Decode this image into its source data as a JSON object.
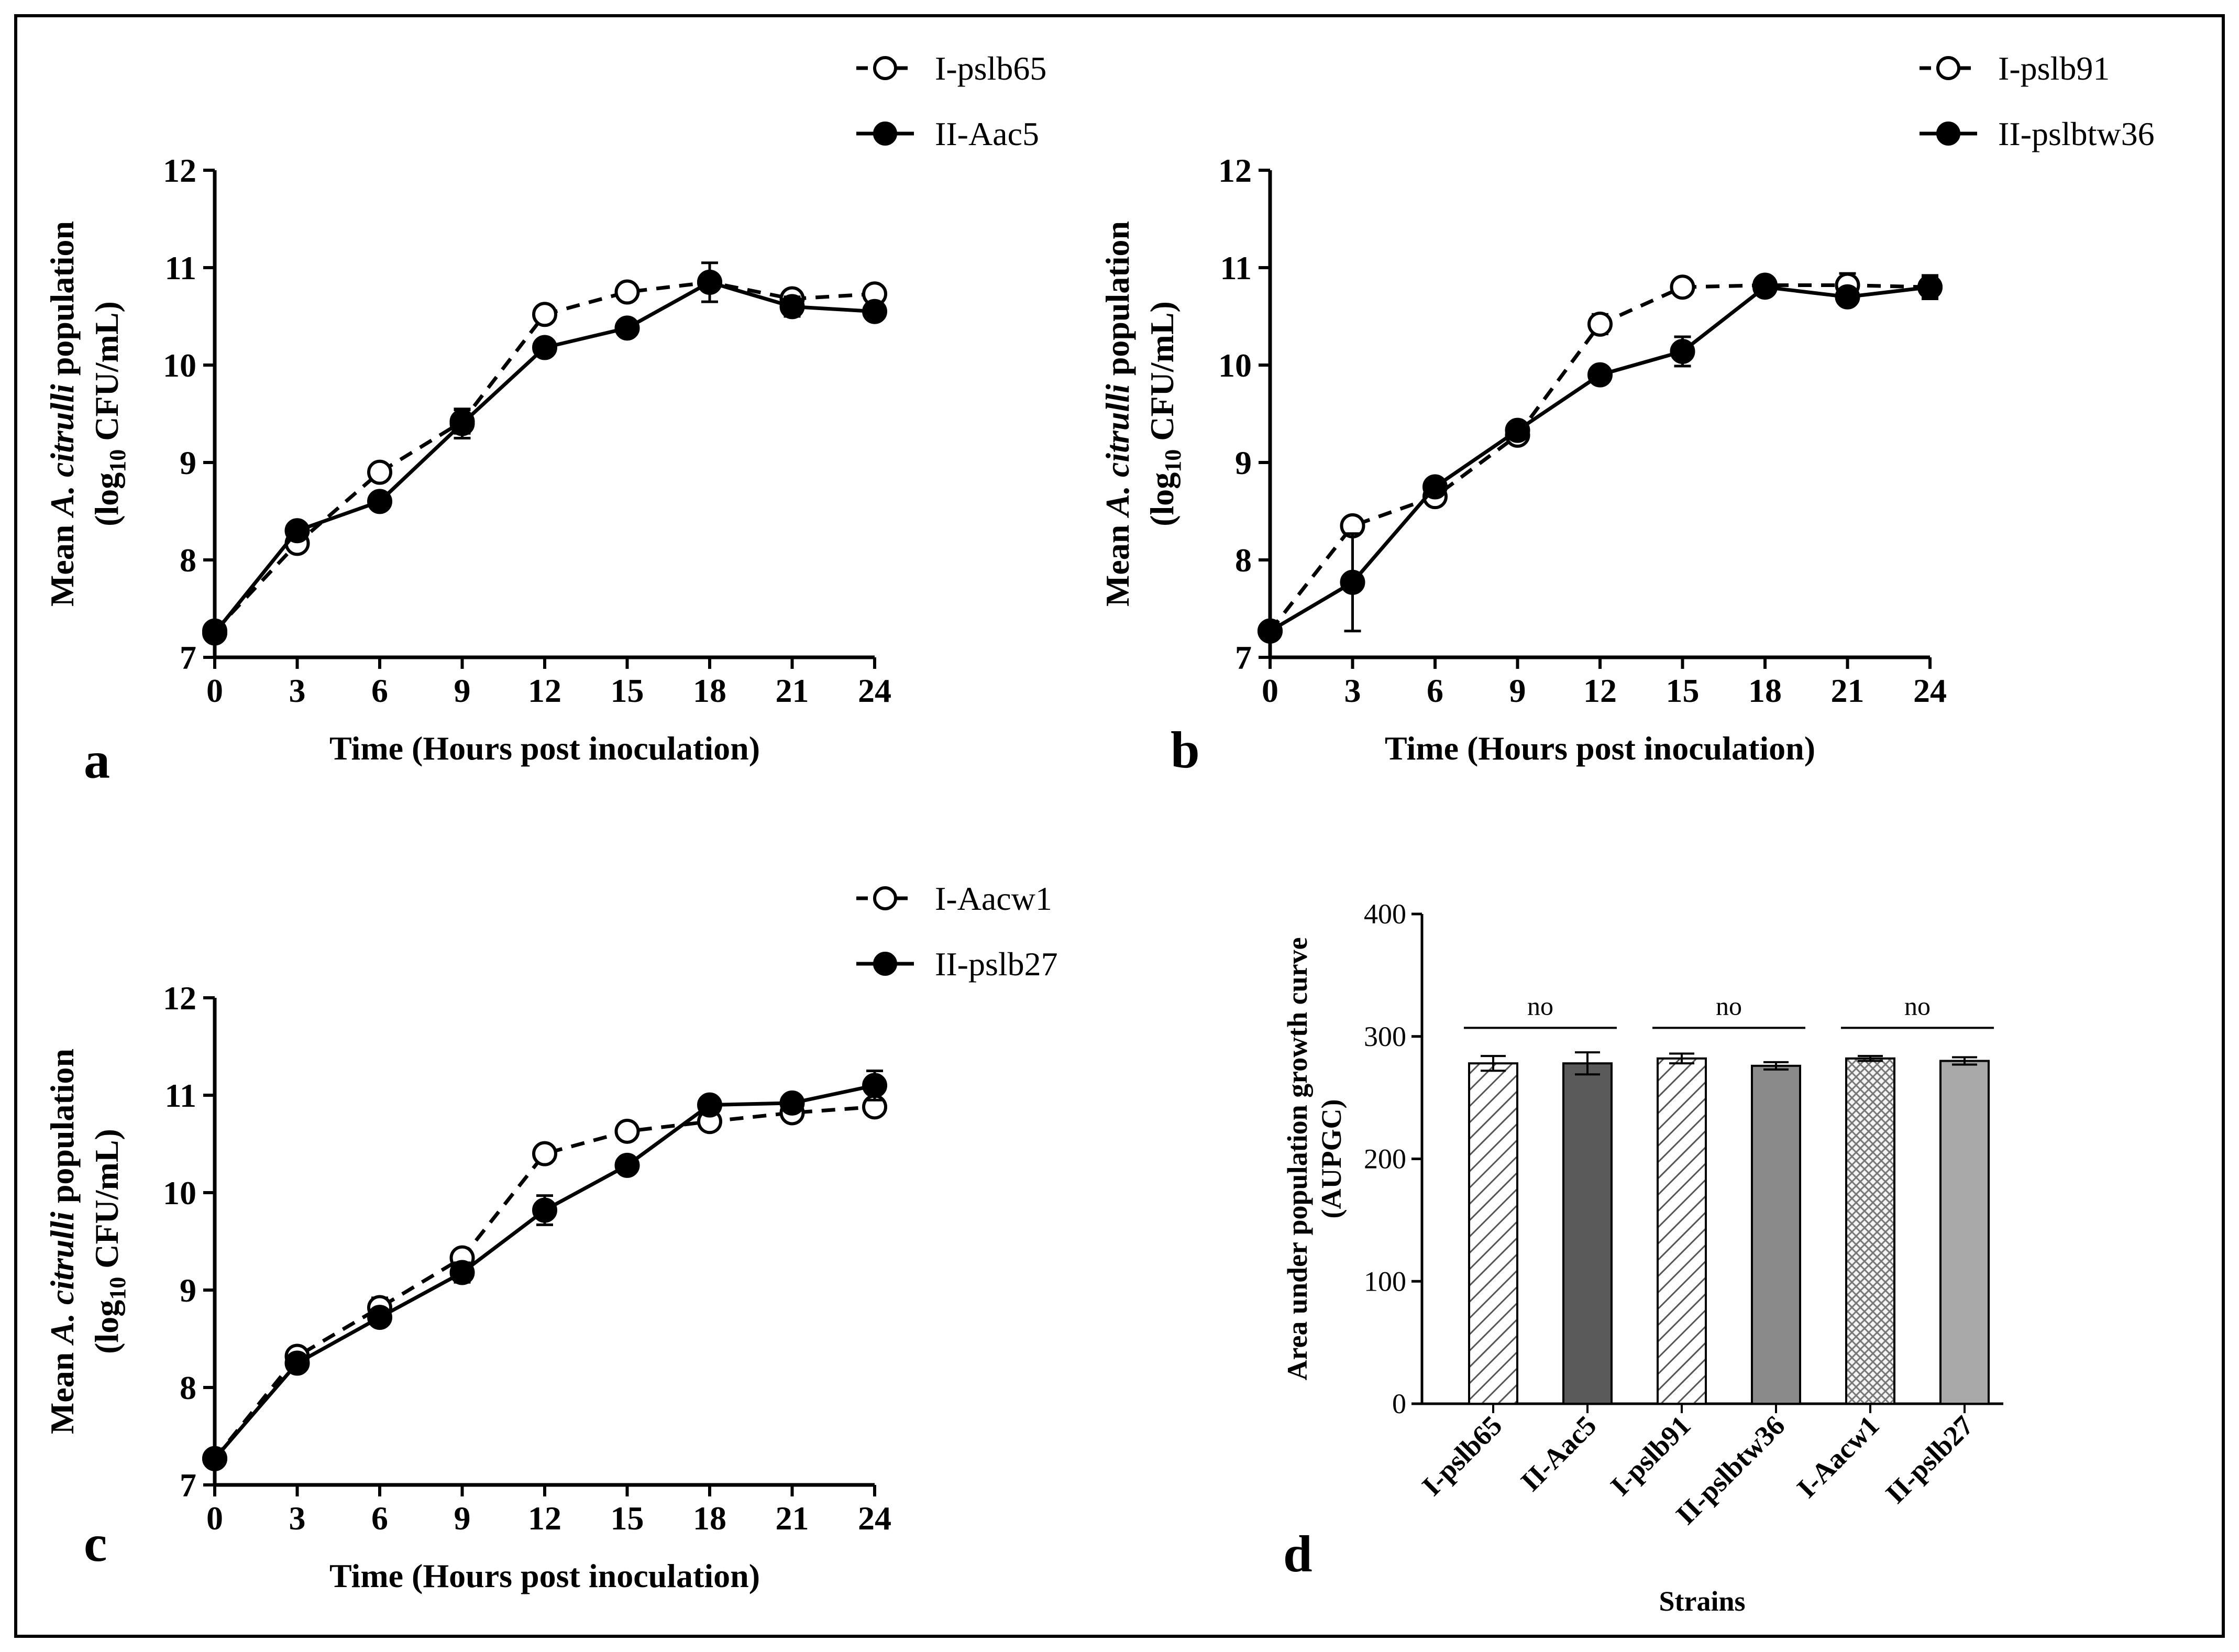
{
  "figure": {
    "panels": [
      "a",
      "b",
      "c",
      "d"
    ]
  },
  "chart_data": [
    {
      "type": "line",
      "panel_label": "a",
      "xlabel": "Time (Hours post inoculation)",
      "ylabel_parts": [
        "Mean ",
        "A. citrulli",
        " population"
      ],
      "ylabel_line2_parts": [
        "(log",
        "10",
        " CFU/mL)"
      ],
      "x": [
        0,
        3,
        6,
        9,
        12,
        15,
        18,
        21,
        24
      ],
      "xticks": [
        "0",
        "3",
        "6",
        "9",
        "12",
        "15",
        "18",
        "21",
        "24"
      ],
      "yticks": [
        "7",
        "8",
        "9",
        "10",
        "11",
        "12"
      ],
      "ylim": [
        7,
        12
      ],
      "xlim": [
        0,
        24
      ],
      "series": [
        {
          "name": "I-pslb65",
          "style": "dashed-open",
          "values": [
            7.27,
            8.17,
            8.9,
            9.42,
            10.52,
            10.75,
            10.85,
            10.68,
            10.73
          ],
          "errors": [
            0.05,
            0.05,
            0.04,
            0.12,
            0.08,
            0.04,
            0.05,
            0.06,
            0.04
          ]
        },
        {
          "name": "II-Aac5",
          "style": "solid-filled",
          "values": [
            7.25,
            8.3,
            8.6,
            9.4,
            10.18,
            10.38,
            10.85,
            10.6,
            10.55
          ],
          "errors": [
            0.05,
            0.05,
            0.04,
            0.15,
            0.05,
            0.05,
            0.2,
            0.1,
            0.05
          ]
        }
      ]
    },
    {
      "type": "line",
      "panel_label": "b",
      "xlabel": "Time (Hours post inoculation)",
      "ylabel_parts": [
        "Mean ",
        "A. citrulli",
        " population"
      ],
      "ylabel_line2_parts": [
        "(log",
        "10",
        " CFU/mL)"
      ],
      "x": [
        0,
        3,
        6,
        9,
        12,
        15,
        18,
        21,
        24
      ],
      "xticks": [
        "0",
        "3",
        "6",
        "9",
        "12",
        "15",
        "18",
        "21",
        "24"
      ],
      "yticks": [
        "7",
        "8",
        "9",
        "10",
        "11",
        "12"
      ],
      "ylim": [
        7,
        12
      ],
      "xlim": [
        0,
        24
      ],
      "series": [
        {
          "name": "I-pslb91",
          "style": "dashed-open",
          "values": [
            7.27,
            8.35,
            8.65,
            9.28,
            10.42,
            10.8,
            10.82,
            10.82,
            10.8
          ],
          "errors": [
            0.05,
            0.05,
            0.05,
            0.05,
            0.1,
            0.04,
            0.04,
            0.12,
            0.1
          ]
        },
        {
          "name": "II-pslbtw36",
          "style": "solid-filled",
          "values": [
            7.27,
            7.77,
            8.75,
            9.33,
            9.9,
            10.14,
            10.8,
            10.7,
            10.8
          ],
          "errors": [
            0.05,
            0.5,
            0.05,
            0.05,
            0.05,
            0.15,
            0.05,
            0.08,
            0.12
          ]
        }
      ]
    },
    {
      "type": "line",
      "panel_label": "c",
      "xlabel": "Time (Hours post inoculation)",
      "ylabel_parts": [
        "Mean ",
        "A. citrulli",
        " population"
      ],
      "ylabel_line2_parts": [
        "(log",
        "10",
        " CFU/mL)"
      ],
      "x": [
        0,
        3,
        6,
        9,
        12,
        15,
        18,
        21,
        24
      ],
      "xticks": [
        "0",
        "3",
        "6",
        "9",
        "12",
        "15",
        "18",
        "21",
        "24"
      ],
      "yticks": [
        "7",
        "8",
        "9",
        "10",
        "11",
        "12"
      ],
      "ylim": [
        7,
        12
      ],
      "xlim": [
        0,
        24
      ],
      "series": [
        {
          "name": "I-Aacw1",
          "style": "dashed-open",
          "values": [
            7.27,
            8.32,
            8.82,
            9.33,
            10.4,
            10.63,
            10.73,
            10.82,
            10.88
          ],
          "errors": [
            0.05,
            0.05,
            0.1,
            0.05,
            0.05,
            0.05,
            0.05,
            0.05,
            0.05
          ]
        },
        {
          "name": "II-pslb27",
          "style": "solid-filled",
          "values": [
            7.27,
            8.25,
            8.72,
            9.18,
            9.82,
            10.28,
            10.9,
            10.92,
            11.1
          ],
          "errors": [
            0.05,
            0.05,
            0.05,
            0.1,
            0.15,
            0.05,
            0.05,
            0.05,
            0.15
          ]
        }
      ]
    },
    {
      "type": "bar",
      "panel_label": "d",
      "xlabel": "Strains",
      "ylabel": "Area under population growth curve",
      "ylabel_line2": "(AUPGC)",
      "categories": [
        "I-pslb65",
        "II-Aac5",
        "I-pslb91",
        "II-pslbtw36",
        "I-Aacw1",
        "II-pslb27"
      ],
      "values": [
        278,
        278,
        282,
        276,
        282,
        280
      ],
      "errors": [
        6,
        9,
        4,
        3,
        2,
        3
      ],
      "yticks": [
        "0",
        "100",
        "200",
        "300",
        "400"
      ],
      "ylim": [
        0,
        400
      ],
      "bar_fills": [
        "#ffffff",
        "#5a5a5a",
        "#ffffff",
        "#8a8a8a",
        "#f2f2f2",
        "#a8a8a8"
      ],
      "bar_patterns": [
        "diag",
        "none",
        "diag",
        "none",
        "cross",
        "none"
      ],
      "significance": [
        {
          "label": "no",
          "from": 0,
          "to": 1
        },
        {
          "label": "no",
          "from": 2,
          "to": 3
        },
        {
          "label": "no",
          "from": 4,
          "to": 5
        }
      ]
    }
  ]
}
